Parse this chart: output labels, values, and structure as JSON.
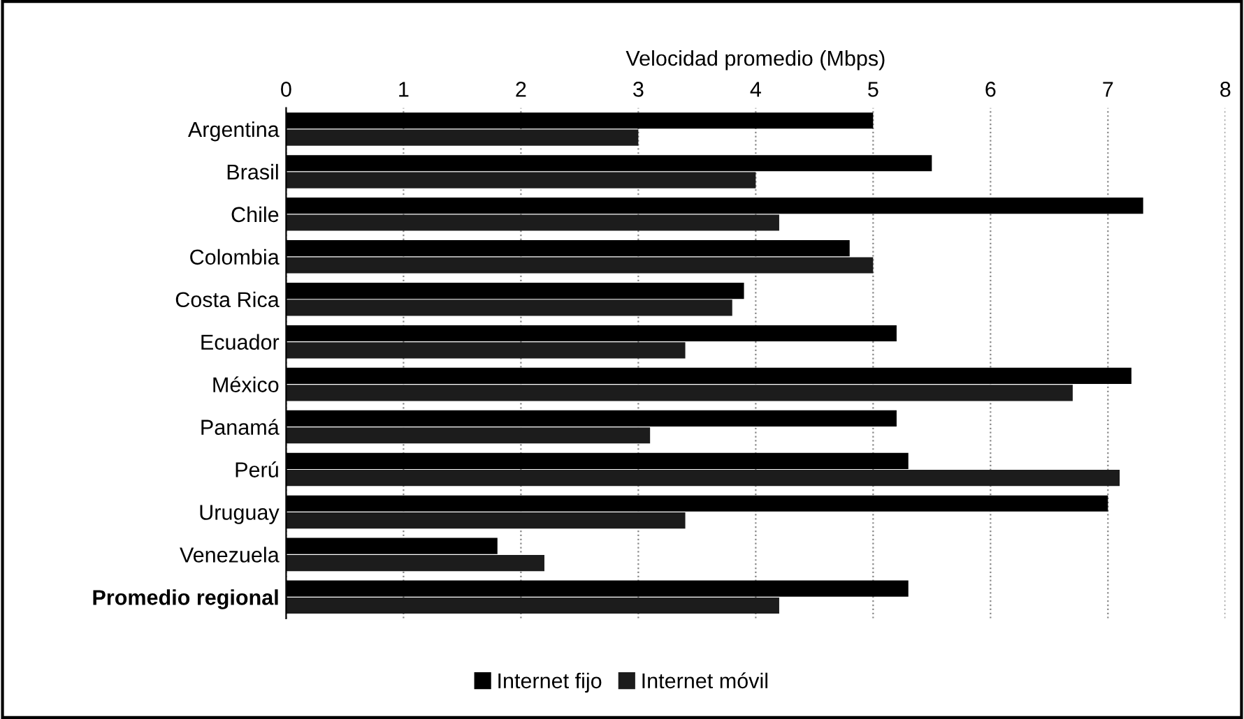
{
  "chart_data": {
    "type": "bar",
    "orientation": "horizontal",
    "xlabel": "Velocidad promedio (Mbps)",
    "categories": [
      "Argentina",
      "Brasil",
      "Chile",
      "Colombia",
      "Costa Rica",
      "Ecuador",
      "México",
      "Panamá",
      "Perú",
      "Uruguay",
      "Venezuela",
      "Promedio regional"
    ],
    "series": [
      {
        "name": "Internet fijo",
        "color": "#000000",
        "values": [
          5.0,
          5.5,
          7.3,
          4.8,
          3.9,
          5.2,
          7.2,
          5.2,
          5.3,
          7.0,
          1.8,
          5.3
        ]
      },
      {
        "name": "Internet móvil",
        "color": "#1c1c1c",
        "values": [
          3.0,
          4.0,
          4.2,
          5.0,
          3.8,
          3.4,
          6.7,
          3.1,
          7.1,
          3.4,
          2.2,
          4.2
        ]
      }
    ],
    "xlim": [
      0,
      8
    ],
    "xticks": [
      0,
      1,
      2,
      3,
      4,
      5,
      6,
      7,
      8
    ],
    "grid": "x",
    "legend": "bottom"
  }
}
